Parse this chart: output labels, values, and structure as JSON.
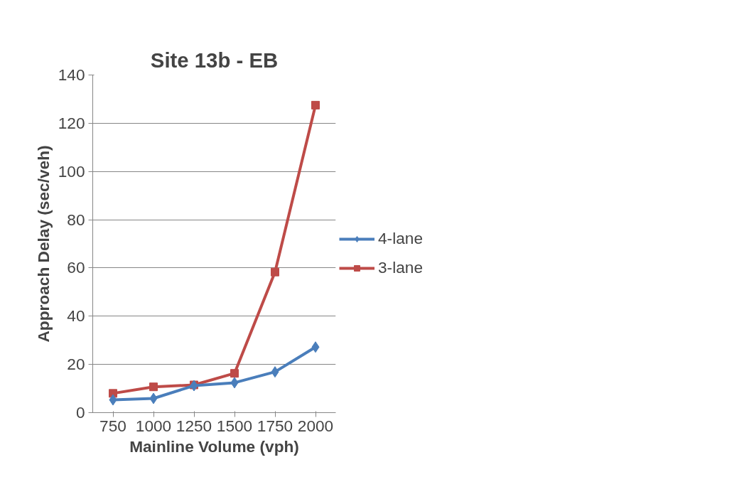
{
  "chart_data": {
    "type": "line",
    "title": "Site 13b - EB",
    "xlabel": "Mainline Volume (vph)",
    "ylabel": "Approach Delay (sec/veh)",
    "categories": [
      "750",
      "1000",
      "1250",
      "1500",
      "1750",
      "2000"
    ],
    "series": [
      {
        "name": "4-lane",
        "color": "#4a7ebb",
        "marker": "diamond",
        "values": [
          5.3,
          5.9,
          11.2,
          12.4,
          16.9,
          27.2
        ]
      },
      {
        "name": "3-lane",
        "color": "#be4b48",
        "marker": "square",
        "values": [
          8.0,
          10.7,
          11.5,
          16.3,
          58.3,
          127.5
        ]
      }
    ],
    "ylim": [
      0,
      140
    ],
    "yticks": [
      0,
      20,
      40,
      60,
      80,
      100,
      120,
      140
    ],
    "grid": "y",
    "legend": "right"
  }
}
